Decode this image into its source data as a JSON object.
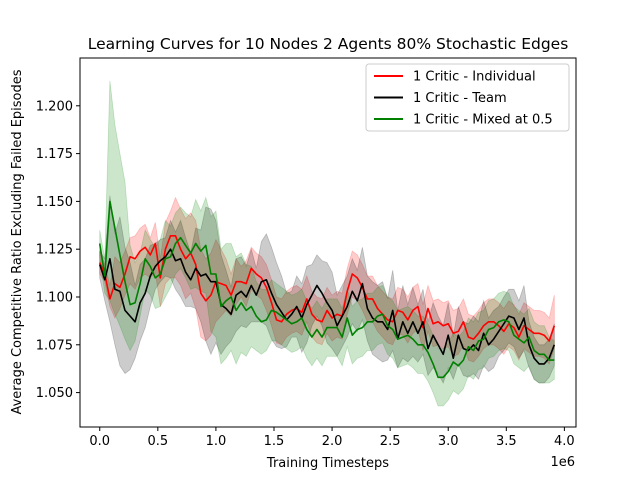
{
  "chart_data": {
    "type": "line",
    "title": "Learning Curves for 10 Nodes 2 Agents 80% Stochastic Edges",
    "xlabel": "Training Timesteps",
    "ylabel": "Average Competitive Ratio Excluding Failed Episodes",
    "x_offset_label": "1e6",
    "xlim": [
      -0.17,
      4.1
    ],
    "ylim": [
      1.032,
      1.225
    ],
    "x_ticks": [
      0.0,
      0.5,
      1.0,
      1.5,
      2.0,
      2.5,
      3.0,
      3.5,
      4.0
    ],
    "x_tick_labels": [
      "0.0",
      "0.5",
      "1.0",
      "1.5",
      "2.0",
      "2.5",
      "3.0",
      "3.5",
      "4.0"
    ],
    "y_ticks": [
      1.05,
      1.075,
      1.1,
      1.125,
      1.15,
      1.175,
      1.2
    ],
    "y_tick_labels": [
      "1.050",
      "1.075",
      "1.100",
      "1.125",
      "1.150",
      "1.175",
      "1.200"
    ],
    "legend_position": "upper right",
    "x": [
      0.0,
      0.0435,
      0.087,
      0.1304,
      0.1739,
      0.2174,
      0.2609,
      0.3043,
      0.3478,
      0.3913,
      0.4348,
      0.4783,
      0.5217,
      0.5652,
      0.6087,
      0.6522,
      0.6957,
      0.7391,
      0.7826,
      0.8261,
      0.8696,
      0.913,
      0.9565,
      1.0,
      1.0435,
      1.087,
      1.1304,
      1.1739,
      1.2174,
      1.2609,
      1.3043,
      1.3478,
      1.3913,
      1.4348,
      1.4783,
      1.5217,
      1.5652,
      1.6087,
      1.6522,
      1.6957,
      1.7391,
      1.7826,
      1.8261,
      1.8696,
      1.913,
      1.9565,
      2.0,
      2.0435,
      2.087,
      2.1304,
      2.1739,
      2.2174,
      2.2609,
      2.3043,
      2.3478,
      2.3913,
      2.4348,
      2.4783,
      2.5217,
      2.5652,
      2.6087,
      2.6522,
      2.6957,
      2.7391,
      2.7826,
      2.8261,
      2.8696,
      2.913,
      2.9565,
      3.0,
      3.0435,
      3.087,
      3.1304,
      3.1739,
      3.2174,
      3.2609,
      3.3043,
      3.3478,
      3.3913,
      3.4348,
      3.4783,
      3.5217,
      3.5652,
      3.6087,
      3.6522,
      3.6957,
      3.7391,
      3.7826,
      3.8261,
      3.8696,
      3.913
    ],
    "series": [
      {
        "name": "1 Critic - Individual",
        "color": "#ff0000",
        "fill": "rgba(255,0,0,0.2)",
        "y": [
          1.118,
          1.112,
          1.099,
          1.107,
          1.105,
          1.112,
          1.121,
          1.12,
          1.124,
          1.126,
          1.122,
          1.128,
          1.11,
          1.125,
          1.132,
          1.132,
          1.125,
          1.12,
          1.123,
          1.117,
          1.102,
          1.098,
          1.101,
          1.108,
          1.107,
          1.106,
          1.101,
          1.108,
          1.108,
          1.107,
          1.115,
          1.112,
          1.11,
          1.105,
          1.097,
          1.088,
          1.087,
          1.091,
          1.093,
          1.094,
          1.092,
          1.099,
          1.091,
          1.088,
          1.087,
          1.093,
          1.089,
          1.091,
          1.09,
          1.103,
          1.112,
          1.11,
          1.105,
          1.099,
          1.099,
          1.094,
          1.091,
          1.088,
          1.087,
          1.093,
          1.092,
          1.088,
          1.093,
          1.095,
          1.084,
          1.094,
          1.086,
          1.087,
          1.085,
          1.086,
          1.081,
          1.082,
          1.087,
          1.079,
          1.078,
          1.081,
          1.085,
          1.087,
          1.087,
          1.085,
          1.082,
          1.086,
          1.084,
          1.079,
          1.085,
          1.083,
          1.081,
          1.081,
          1.08,
          1.077,
          1.085
        ],
        "lower": [
          1.112,
          1.108,
          1.095,
          1.089,
          1.094,
          1.101,
          1.107,
          1.104,
          1.11,
          1.112,
          1.11,
          1.113,
          1.095,
          1.107,
          1.11,
          1.11,
          1.106,
          1.099,
          1.102,
          1.094,
          1.079,
          1.077,
          1.08,
          1.087,
          1.09,
          1.093,
          1.09,
          1.096,
          1.1,
          1.095,
          1.104,
          1.101,
          1.099,
          1.093,
          1.085,
          1.076,
          1.075,
          1.079,
          1.081,
          1.082,
          1.08,
          1.087,
          1.079,
          1.076,
          1.075,
          1.081,
          1.077,
          1.079,
          1.078,
          1.091,
          1.1,
          1.098,
          1.093,
          1.087,
          1.087,
          1.082,
          1.079,
          1.076,
          1.075,
          1.081,
          1.08,
          1.076,
          1.081,
          1.083,
          1.072,
          1.082,
          1.074,
          1.075,
          1.073,
          1.074,
          1.069,
          1.07,
          1.075,
          1.067,
          1.066,
          1.069,
          1.073,
          1.075,
          1.075,
          1.073,
          1.07,
          1.074,
          1.072,
          1.067,
          1.073,
          1.071,
          1.069,
          1.069,
          1.068,
          1.065,
          1.073
        ],
        "upper": [
          1.124,
          1.117,
          1.106,
          1.121,
          1.118,
          1.124,
          1.131,
          1.132,
          1.136,
          1.138,
          1.131,
          1.139,
          1.12,
          1.139,
          1.145,
          1.152,
          1.146,
          1.141,
          1.144,
          1.14,
          1.125,
          1.12,
          1.123,
          1.13,
          1.125,
          1.12,
          1.112,
          1.12,
          1.116,
          1.119,
          1.126,
          1.123,
          1.121,
          1.117,
          1.109,
          1.1,
          1.099,
          1.103,
          1.105,
          1.106,
          1.104,
          1.111,
          1.103,
          1.1,
          1.099,
          1.105,
          1.101,
          1.103,
          1.102,
          1.115,
          1.124,
          1.122,
          1.117,
          1.111,
          1.111,
          1.106,
          1.103,
          1.1,
          1.099,
          1.105,
          1.104,
          1.1,
          1.105,
          1.107,
          1.096,
          1.106,
          1.098,
          1.099,
          1.097,
          1.098,
          1.093,
          1.094,
          1.099,
          1.091,
          1.09,
          1.093,
          1.097,
          1.099,
          1.099,
          1.097,
          1.094,
          1.098,
          1.096,
          1.091,
          1.097,
          1.095,
          1.093,
          1.093,
          1.092,
          1.089,
          1.101
        ]
      },
      {
        "name": "1 Critic - Team",
        "color": "#000000",
        "fill": "rgba(0,0,0,0.2)",
        "y": [
          1.117,
          1.109,
          1.12,
          1.104,
          1.103,
          1.093,
          1.09,
          1.087,
          1.097,
          1.102,
          1.111,
          1.116,
          1.119,
          1.121,
          1.125,
          1.119,
          1.12,
          1.113,
          1.109,
          1.115,
          1.111,
          1.112,
          1.108,
          1.108,
          1.096,
          1.094,
          1.091,
          1.101,
          1.103,
          1.1,
          1.106,
          1.101,
          1.108,
          1.109,
          1.102,
          1.096,
          1.092,
          1.088,
          1.091,
          1.095,
          1.089,
          1.096,
          1.101,
          1.106,
          1.102,
          1.097,
          1.093,
          1.085,
          1.09,
          1.095,
          1.103,
          1.098,
          1.107,
          1.094,
          1.089,
          1.087,
          1.087,
          1.083,
          1.093,
          1.078,
          1.087,
          1.081,
          1.087,
          1.081,
          1.087,
          1.073,
          1.08,
          1.075,
          1.07,
          1.08,
          1.068,
          1.08,
          1.073,
          1.072,
          1.075,
          1.072,
          1.081,
          1.075,
          1.078,
          1.082,
          1.086,
          1.09,
          1.089,
          1.083,
          1.089,
          1.075,
          1.068,
          1.065,
          1.065,
          1.068,
          1.075
        ],
        "lower": [
          1.11,
          1.098,
          1.087,
          1.075,
          1.064,
          1.06,
          1.062,
          1.068,
          1.077,
          1.084,
          1.095,
          1.104,
          1.108,
          1.111,
          1.11,
          1.104,
          1.1,
          1.095,
          1.095,
          1.094,
          1.087,
          1.077,
          1.07,
          1.076,
          1.07,
          1.074,
          1.077,
          1.082,
          1.085,
          1.084,
          1.087,
          1.087,
          1.087,
          1.085,
          1.078,
          1.074,
          1.073,
          1.074,
          1.079,
          1.079,
          1.071,
          1.076,
          1.085,
          1.09,
          1.085,
          1.076,
          1.073,
          1.069,
          1.074,
          1.079,
          1.086,
          1.082,
          1.088,
          1.077,
          1.07,
          1.068,
          1.066,
          1.067,
          1.072,
          1.063,
          1.068,
          1.066,
          1.069,
          1.066,
          1.07,
          1.059,
          1.063,
          1.06,
          1.055,
          1.063,
          1.057,
          1.065,
          1.059,
          1.058,
          1.06,
          1.057,
          1.064,
          1.061,
          1.063,
          1.069,
          1.072,
          1.076,
          1.074,
          1.068,
          1.072,
          1.063,
          1.057,
          1.055,
          1.055,
          1.058,
          1.064
        ],
        "upper": [
          1.124,
          1.12,
          1.153,
          1.133,
          1.142,
          1.126,
          1.118,
          1.106,
          1.117,
          1.12,
          1.127,
          1.128,
          1.13,
          1.131,
          1.14,
          1.134,
          1.14,
          1.131,
          1.123,
          1.136,
          1.135,
          1.147,
          1.146,
          1.14,
          1.122,
          1.114,
          1.105,
          1.12,
          1.121,
          1.116,
          1.125,
          1.115,
          1.129,
          1.133,
          1.126,
          1.118,
          1.111,
          1.102,
          1.103,
          1.111,
          1.107,
          1.116,
          1.117,
          1.122,
          1.119,
          1.118,
          1.113,
          1.101,
          1.106,
          1.111,
          1.12,
          1.114,
          1.126,
          1.111,
          1.108,
          1.106,
          1.108,
          1.099,
          1.114,
          1.093,
          1.106,
          1.096,
          1.105,
          1.096,
          1.104,
          1.087,
          1.097,
          1.09,
          1.085,
          1.097,
          1.079,
          1.095,
          1.087,
          1.086,
          1.09,
          1.087,
          1.098,
          1.089,
          1.093,
          1.095,
          1.1,
          1.104,
          1.104,
          1.098,
          1.106,
          1.087,
          1.079,
          1.075,
          1.075,
          1.078,
          1.086
        ]
      },
      {
        "name": "1 Critic - Mixed at 0.5",
        "color": "#008000",
        "fill": "rgba(0,128,0,0.2)",
        "y": [
          1.128,
          1.111,
          1.15,
          1.136,
          1.122,
          1.108,
          1.096,
          1.097,
          1.107,
          1.12,
          1.116,
          1.11,
          1.112,
          1.12,
          1.121,
          1.128,
          1.131,
          1.127,
          1.123,
          1.128,
          1.124,
          1.127,
          1.112,
          1.112,
          1.095,
          1.098,
          1.1,
          1.093,
          1.097,
          1.093,
          1.095,
          1.09,
          1.087,
          1.088,
          1.093,
          1.092,
          1.09,
          1.088,
          1.086,
          1.087,
          1.089,
          1.083,
          1.079,
          1.083,
          1.079,
          1.084,
          1.084,
          1.084,
          1.079,
          1.089,
          1.08,
          1.083,
          1.084,
          1.087,
          1.087,
          1.09,
          1.091,
          1.085,
          1.083,
          1.078,
          1.079,
          1.08,
          1.078,
          1.075,
          1.075,
          1.071,
          1.065,
          1.058,
          1.058,
          1.061,
          1.066,
          1.064,
          1.067,
          1.074,
          1.072,
          1.077,
          1.078,
          1.083,
          1.084,
          1.087,
          1.088,
          1.087,
          1.08,
          1.078,
          1.076,
          1.079,
          1.072,
          1.07,
          1.07,
          1.067,
          1.067
        ],
        "lower": [
          1.121,
          1.102,
          1.098,
          1.091,
          1.085,
          1.078,
          1.072,
          1.077,
          1.09,
          1.104,
          1.101,
          1.094,
          1.095,
          1.1,
          1.105,
          1.112,
          1.115,
          1.11,
          1.104,
          1.105,
          1.103,
          1.102,
          1.082,
          1.079,
          1.065,
          1.068,
          1.072,
          1.065,
          1.071,
          1.069,
          1.074,
          1.072,
          1.07,
          1.072,
          1.077,
          1.077,
          1.075,
          1.073,
          1.071,
          1.072,
          1.074,
          1.068,
          1.064,
          1.068,
          1.064,
          1.069,
          1.069,
          1.069,
          1.064,
          1.074,
          1.065,
          1.068,
          1.069,
          1.072,
          1.072,
          1.075,
          1.076,
          1.07,
          1.068,
          1.063,
          1.064,
          1.065,
          1.063,
          1.06,
          1.06,
          1.056,
          1.05,
          1.043,
          1.043,
          1.046,
          1.051,
          1.049,
          1.052,
          1.059,
          1.057,
          1.062,
          1.063,
          1.068,
          1.069,
          1.072,
          1.073,
          1.072,
          1.065,
          1.063,
          1.061,
          1.064,
          1.057,
          1.055,
          1.055,
          1.055,
          1.057
        ],
        "upper": [
          1.135,
          1.12,
          1.213,
          1.19,
          1.175,
          1.16,
          1.127,
          1.118,
          1.123,
          1.135,
          1.13,
          1.126,
          1.13,
          1.14,
          1.137,
          1.144,
          1.147,
          1.144,
          1.142,
          1.151,
          1.145,
          1.152,
          1.142,
          1.145,
          1.125,
          1.128,
          1.128,
          1.121,
          1.123,
          1.117,
          1.116,
          1.108,
          1.104,
          1.104,
          1.109,
          1.107,
          1.105,
          1.103,
          1.101,
          1.102,
          1.104,
          1.098,
          1.094,
          1.098,
          1.094,
          1.099,
          1.099,
          1.099,
          1.094,
          1.104,
          1.095,
          1.098,
          1.099,
          1.102,
          1.102,
          1.105,
          1.106,
          1.1,
          1.098,
          1.093,
          1.094,
          1.095,
          1.093,
          1.09,
          1.09,
          1.086,
          1.08,
          1.073,
          1.073,
          1.076,
          1.081,
          1.079,
          1.082,
          1.089,
          1.087,
          1.092,
          1.093,
          1.098,
          1.099,
          1.102,
          1.103,
          1.102,
          1.095,
          1.093,
          1.091,
          1.094,
          1.087,
          1.085,
          1.085,
          1.079,
          1.077
        ]
      }
    ]
  }
}
